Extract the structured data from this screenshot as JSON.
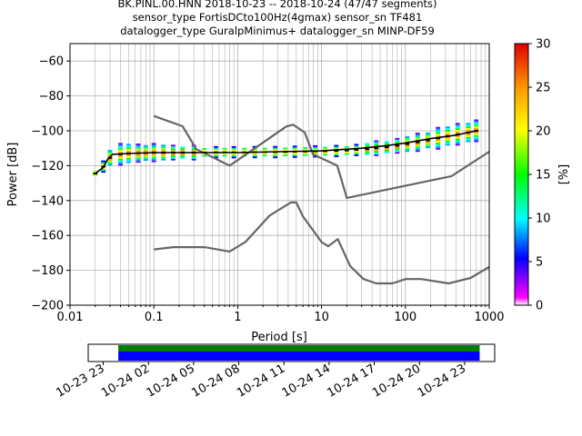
{
  "chart_data": [
    {
      "type": "heatmap",
      "title": [
        "BK.PINL.00.HNN   2018-10-23 -- 2018-10-24  (47/47 segments)",
        "sensor_type FortisDCto100Hz(4gmax) sensor_sn TF481",
        "datalogger_type GuralpMinimus+ datalogger_sn MINP-DF59"
      ],
      "xlabel": "Period [s]",
      "ylabel": "Power [dB]",
      "xscale": "log",
      "xlim": [
        0.01,
        1000
      ],
      "ylim": [
        -200,
        -50
      ],
      "x_ticks": [
        {
          "v": 0.01,
          "label": "0.01"
        },
        {
          "v": 0.1,
          "label": "0.1"
        },
        {
          "v": 1,
          "label": "1"
        },
        {
          "v": 10,
          "label": "10"
        },
        {
          "v": 100,
          "label": "100"
        },
        {
          "v": 1000,
          "label": "1000"
        }
      ],
      "y_ticks": [
        -60,
        -80,
        -100,
        -120,
        -140,
        -160,
        -180,
        -200
      ],
      "grid": true,
      "colorbar": {
        "label": "[%]",
        "min": 0,
        "max": 30,
        "ticks": [
          0,
          5,
          10,
          15,
          20,
          25,
          30
        ],
        "colormap": "pqlx"
      },
      "series": [
        {
          "role": "noise-model-high",
          "color": "#666666",
          "points": [
            [
              0.1,
              -91.5
            ],
            [
              0.22,
              -97.4
            ],
            [
              0.32,
              -110.5
            ],
            [
              0.8,
              -120.0
            ],
            [
              3.8,
              -97.5
            ],
            [
              4.6,
              -96.5
            ],
            [
              6.3,
              -101.0
            ],
            [
              7.9,
              -113.5
            ],
            [
              15.4,
              -120.0
            ],
            [
              20.0,
              -138.5
            ],
            [
              354.8,
              -126.0
            ],
            [
              1000,
              -112.0
            ]
          ]
        },
        {
          "role": "noise-model-low",
          "color": "#666666",
          "points": [
            [
              0.1,
              -168.0
            ],
            [
              0.17,
              -166.7
            ],
            [
              0.4,
              -166.7
            ],
            [
              0.8,
              -169.2
            ],
            [
              1.24,
              -163.7
            ],
            [
              2.4,
              -148.6
            ],
            [
              4.3,
              -141.1
            ],
            [
              5.0,
              -141.1
            ],
            [
              6.0,
              -149.0
            ],
            [
              10.0,
              -163.8
            ],
            [
              12.0,
              -166.2
            ],
            [
              15.6,
              -162.1
            ],
            [
              21.9,
              -177.5
            ],
            [
              31.6,
              -185.0
            ],
            [
              45.0,
              -187.5
            ],
            [
              70.0,
              -187.5
            ],
            [
              101.0,
              -185.0
            ],
            [
              154.0,
              -185.0
            ],
            [
              328.0,
              -187.5
            ],
            [
              600.0,
              -184.4
            ],
            [
              1000,
              -178.0
            ]
          ]
        },
        {
          "role": "mode-trace",
          "color": "#000000",
          "points": [
            [
              0.02,
              -124.5
            ],
            [
              0.025,
              -121.0
            ],
            [
              0.028,
              -116.5
            ],
            [
              0.032,
              -113.5
            ],
            [
              0.05,
              -113.0
            ],
            [
              0.1,
              -112.5
            ],
            [
              0.3,
              -112.5
            ],
            [
              1,
              -112.5
            ],
            [
              3,
              -112.0
            ],
            [
              10,
              -111.5
            ],
            [
              30,
              -110.0
            ],
            [
              60,
              -108.5
            ],
            [
              100,
              -107.0
            ],
            [
              200,
              -104.5
            ],
            [
              400,
              -102.5
            ],
            [
              700,
              -100.0
            ]
          ]
        }
      ],
      "psd_density": {
        "periods": [
          0.02,
          0.025,
          0.03,
          0.04,
          0.05,
          0.065,
          0.08,
          0.1,
          0.13,
          0.17,
          0.22,
          0.3,
          0.4,
          0.55,
          0.7,
          0.9,
          1.2,
          1.6,
          2.1,
          2.8,
          3.7,
          4.8,
          6.4,
          8.4,
          11,
          15,
          20,
          26,
          35,
          45,
          60,
          80,
          105,
          140,
          185,
          245,
          320,
          420,
          560,
          700
        ],
        "center_dB": [
          -124.5,
          -120.5,
          -115.5,
          -113.5,
          -113.0,
          -112.8,
          -112.7,
          -112.5,
          -112.5,
          -112.5,
          -112.5,
          -112.5,
          -112.4,
          -112.3,
          -112.3,
          -112.3,
          -112.3,
          -112.2,
          -112.2,
          -112.2,
          -112.1,
          -112.0,
          -111.9,
          -111.8,
          -111.7,
          -111.6,
          -111.3,
          -111.0,
          -110.5,
          -110.0,
          -109.4,
          -108.6,
          -107.6,
          -106.6,
          -105.5,
          -104.3,
          -103.0,
          -102.0,
          -101.0,
          -100.0
        ],
        "spread_dB": [
          2,
          3,
          5,
          6,
          6,
          5,
          5,
          5,
          5,
          4,
          4,
          4,
          3,
          3,
          3,
          3,
          3,
          3,
          3,
          3,
          3,
          3,
          3,
          3,
          3,
          3,
          3,
          3,
          4,
          4,
          4,
          4,
          5,
          5,
          5,
          6,
          6,
          6,
          6,
          6
        ]
      }
    },
    {
      "type": "bar",
      "role": "data-availability",
      "time_range": [
        "2018-10-23 22:00",
        "2018-10-25 01:00"
      ],
      "data_span": [
        "2018-10-24 00:00",
        "2018-10-25 00:00"
      ],
      "tick_labels": [
        "10-23 23",
        "10-24 02",
        "10-24 05",
        "10-24 08",
        "10-24 11",
        "10-24 14",
        "10-24 17",
        "10-24 20",
        "10-24 23"
      ],
      "tick_hours": [
        1,
        4,
        7,
        10,
        13,
        16,
        19,
        22,
        25
      ],
      "colors": {
        "top": "#008000",
        "bottom": "#0000ff"
      }
    }
  ]
}
